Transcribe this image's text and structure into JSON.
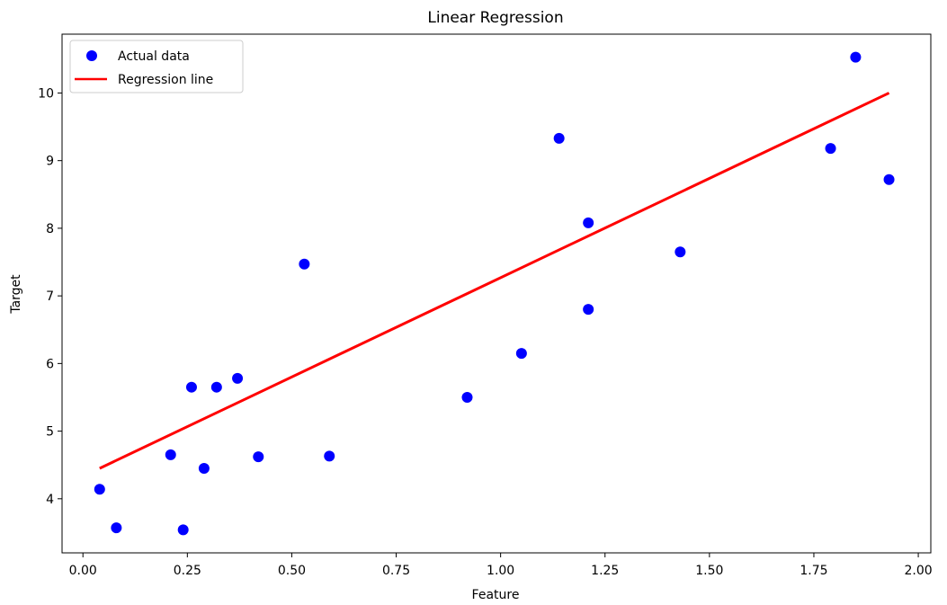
{
  "chart_data": {
    "type": "scatter",
    "title": "Linear Regression",
    "xlabel": "Feature",
    "ylabel": "Target",
    "xlim": [
      -0.05,
      2.03
    ],
    "ylim": [
      3.2,
      10.87
    ],
    "xticks": [
      0.0,
      0.25,
      0.5,
      0.75,
      1.0,
      1.25,
      1.5,
      1.75,
      2.0
    ],
    "xtick_labels": [
      "0.00",
      "0.25",
      "0.50",
      "0.75",
      "1.00",
      "1.25",
      "1.50",
      "1.75",
      "2.00"
    ],
    "yticks": [
      4,
      5,
      6,
      7,
      8,
      9,
      10
    ],
    "ytick_labels": [
      "4",
      "5",
      "6",
      "7",
      "8",
      "9",
      "10"
    ],
    "grid": false,
    "legend_position": "top-left",
    "legend": [
      "Actual data",
      "Regression line"
    ],
    "series": [
      {
        "name": "Actual data",
        "kind": "scatter",
        "color": "#0000ff",
        "points": [
          {
            "x": 0.04,
            "y": 4.14
          },
          {
            "x": 0.08,
            "y": 3.57
          },
          {
            "x": 0.21,
            "y": 4.65
          },
          {
            "x": 0.24,
            "y": 3.54
          },
          {
            "x": 0.26,
            "y": 5.65
          },
          {
            "x": 0.29,
            "y": 4.45
          },
          {
            "x": 0.32,
            "y": 5.65
          },
          {
            "x": 0.37,
            "y": 5.78
          },
          {
            "x": 0.42,
            "y": 4.62
          },
          {
            "x": 0.53,
            "y": 7.47
          },
          {
            "x": 0.59,
            "y": 4.63
          },
          {
            "x": 0.92,
            "y": 5.5
          },
          {
            "x": 1.05,
            "y": 6.15
          },
          {
            "x": 1.14,
            "y": 9.33
          },
          {
            "x": 1.21,
            "y": 8.08
          },
          {
            "x": 1.21,
            "y": 6.8
          },
          {
            "x": 1.43,
            "y": 7.65
          },
          {
            "x": 1.79,
            "y": 9.18
          },
          {
            "x": 1.85,
            "y": 10.53
          },
          {
            "x": 1.93,
            "y": 8.72
          }
        ]
      },
      {
        "name": "Regression line",
        "kind": "line",
        "color": "#ff0000",
        "points": [
          {
            "x": 0.04,
            "y": 4.45
          },
          {
            "x": 1.93,
            "y": 10.0
          }
        ]
      }
    ]
  }
}
